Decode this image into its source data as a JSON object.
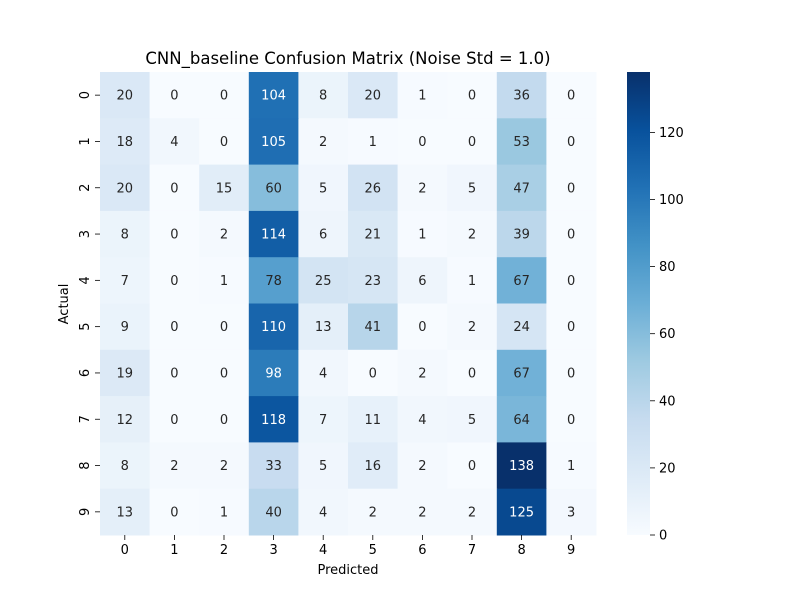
{
  "chart_data": {
    "type": "heatmap",
    "title": "CNN_baseline Confusion Matrix (Noise Std = 1.0)",
    "xlabel": "Predicted",
    "ylabel": "Actual",
    "x_categories": [
      "0",
      "1",
      "2",
      "3",
      "4",
      "5",
      "6",
      "7",
      "8",
      "9"
    ],
    "y_categories": [
      "0",
      "1",
      "2",
      "3",
      "4",
      "5",
      "6",
      "7",
      "8",
      "9"
    ],
    "values": [
      [
        20,
        0,
        0,
        104,
        8,
        20,
        1,
        0,
        36,
        0
      ],
      [
        18,
        4,
        0,
        105,
        2,
        1,
        0,
        0,
        53,
        0
      ],
      [
        20,
        0,
        15,
        60,
        5,
        26,
        2,
        5,
        47,
        0
      ],
      [
        8,
        0,
        2,
        114,
        6,
        21,
        1,
        2,
        39,
        0
      ],
      [
        7,
        0,
        1,
        78,
        25,
        23,
        6,
        1,
        67,
        0
      ],
      [
        9,
        0,
        0,
        110,
        13,
        41,
        0,
        2,
        24,
        0
      ],
      [
        19,
        0,
        0,
        98,
        4,
        0,
        2,
        0,
        67,
        0
      ],
      [
        12,
        0,
        0,
        118,
        7,
        11,
        4,
        5,
        64,
        0
      ],
      [
        8,
        2,
        2,
        33,
        5,
        16,
        2,
        0,
        138,
        1
      ],
      [
        13,
        0,
        1,
        40,
        4,
        2,
        2,
        2,
        125,
        3
      ]
    ],
    "colorbar": {
      "min": 0,
      "max": 138,
      "ticks": [
        0,
        20,
        40,
        60,
        80,
        100,
        120
      ]
    },
    "colormap": "Blues",
    "colors": {
      "low": "#f7fbff",
      "high": "#08306b",
      "text_dark": "#262626",
      "text_light": "#ffffff"
    }
  }
}
